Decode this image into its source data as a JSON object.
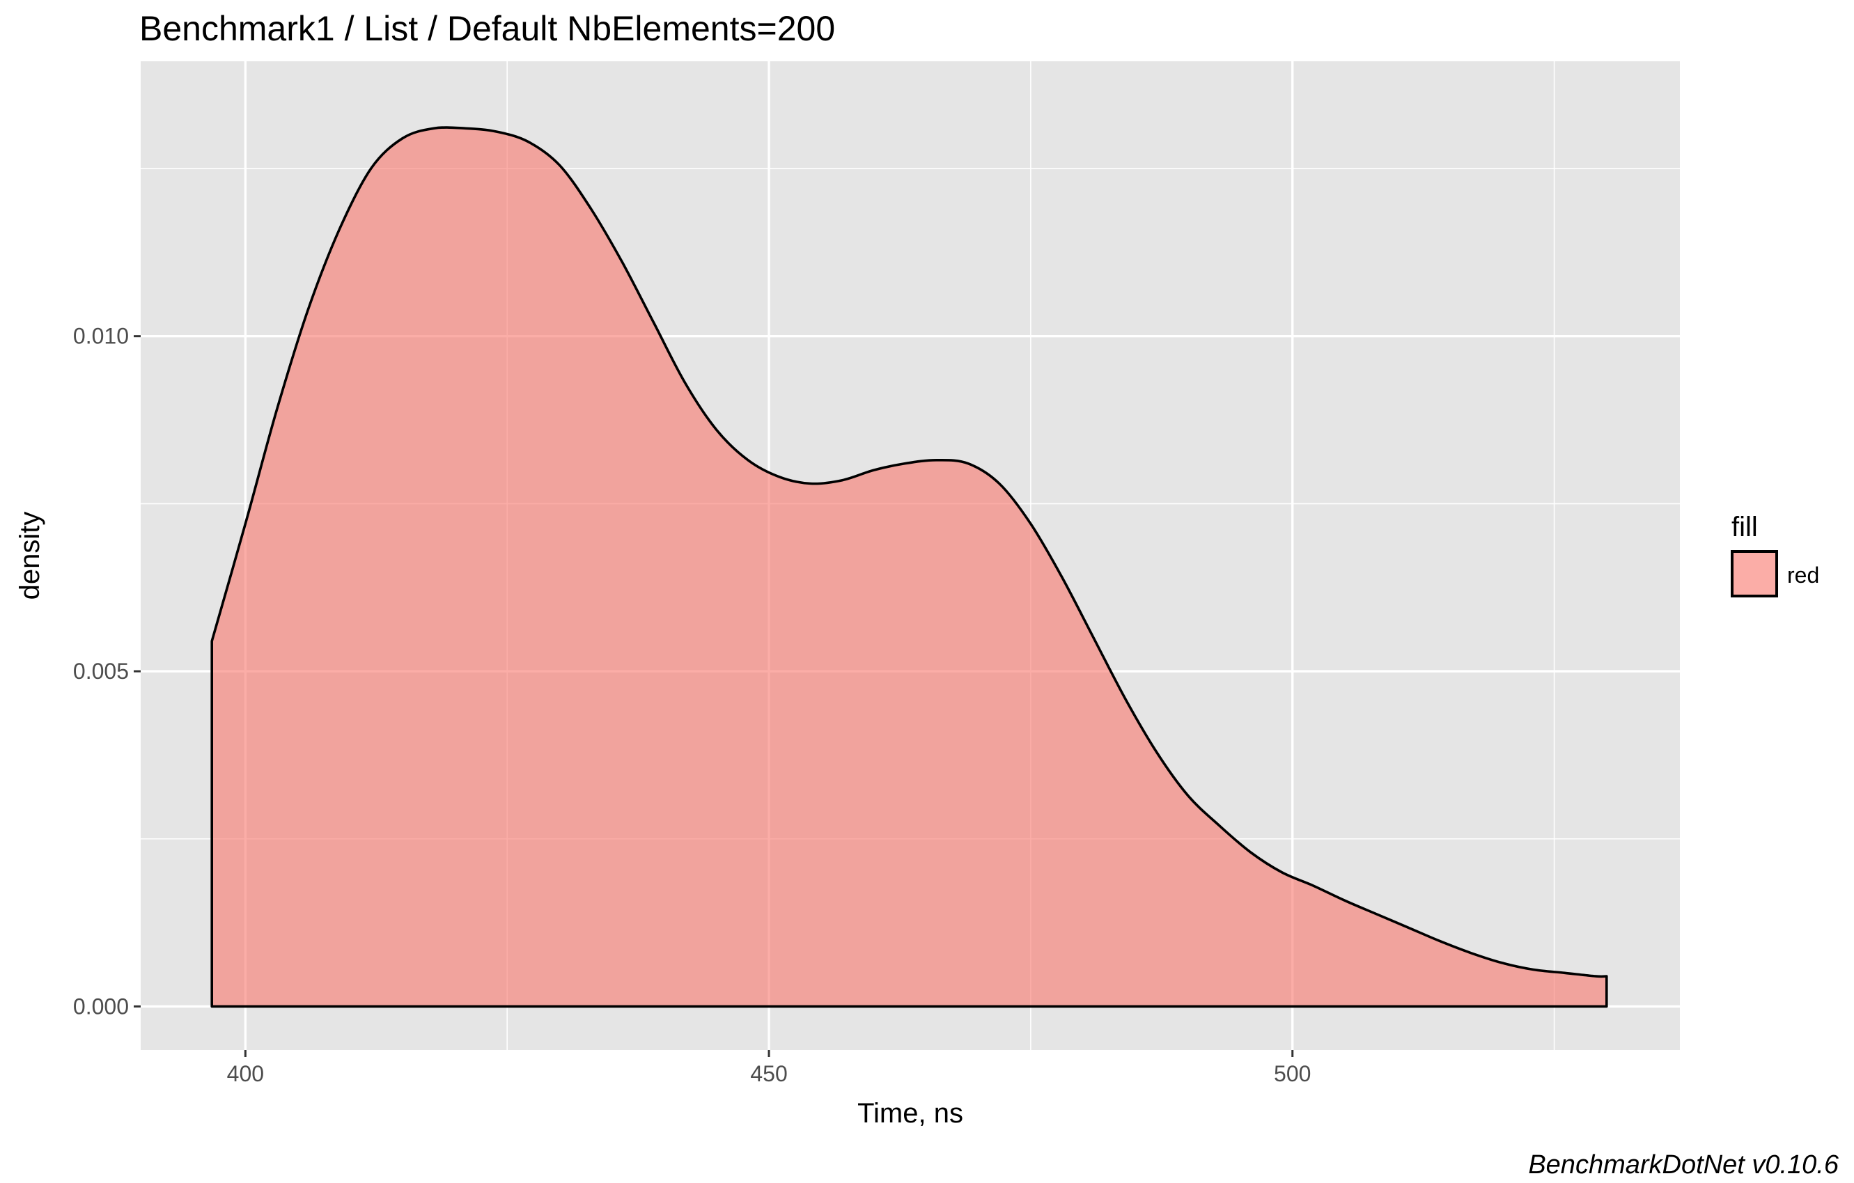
{
  "chart_data": {
    "type": "area",
    "title": "Benchmark1 / List / Default NbElements=200",
    "xlabel": "Time, ns",
    "ylabel": "density",
    "caption": "BenchmarkDotNet v0.10.6",
    "xlim": [
      390,
      537
    ],
    "ylim": [
      -0.00065,
      0.0141
    ],
    "x_ticks": [
      400,
      450,
      500
    ],
    "x_tick_labels": [
      "400",
      "450",
      "500"
    ],
    "x_minor_ticks": [
      425,
      475,
      525
    ],
    "y_ticks": [
      0.0,
      0.005,
      0.01
    ],
    "y_tick_labels": [
      "0.000",
      "0.005",
      "0.010"
    ],
    "y_minor_ticks": [
      0.0025,
      0.0075,
      0.0125
    ],
    "grid": true,
    "legend": {
      "title": "fill",
      "position": "right",
      "entries": [
        "red"
      ]
    },
    "colors": {
      "panel_background": "#e5e5e5",
      "grid": "#ffffff",
      "fill": "#f8766d",
      "outline": "#000000"
    },
    "series": [
      {
        "name": "red",
        "fill_opacity": 0.6,
        "x": [
          396.8,
          400,
          403,
          406,
          409,
          412,
          415,
          418,
          421,
          424,
          427,
          430,
          433,
          436,
          439,
          442,
          445,
          448,
          451,
          454,
          457,
          460,
          463,
          466,
          469,
          472,
          475,
          478,
          481,
          484,
          487,
          490,
          493,
          496,
          499,
          502,
          505,
          508,
          511,
          514,
          517,
          520,
          523,
          526,
          529,
          530.0
        ],
        "y": [
          0.00545,
          0.0072,
          0.0089,
          0.0104,
          0.0116,
          0.0125,
          0.01295,
          0.0131,
          0.0131,
          0.01305,
          0.0129,
          0.01255,
          0.0119,
          0.0111,
          0.0102,
          0.0093,
          0.0086,
          0.00815,
          0.0079,
          0.0078,
          0.00785,
          0.008,
          0.0081,
          0.00815,
          0.0081,
          0.0078,
          0.0072,
          0.0064,
          0.0055,
          0.0046,
          0.0038,
          0.00315,
          0.0027,
          0.0023,
          0.002,
          0.0018,
          0.00158,
          0.00138,
          0.00118,
          0.00098,
          0.0008,
          0.00065,
          0.00055,
          0.0005,
          0.00045,
          0.00045
        ]
      }
    ]
  }
}
